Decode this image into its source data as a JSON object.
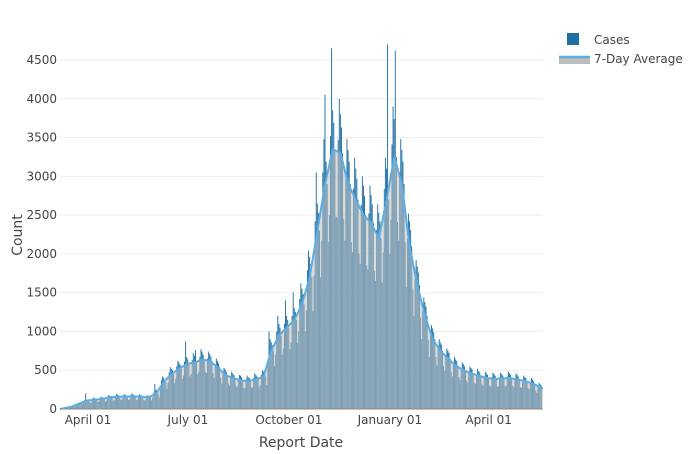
{
  "chart_data": {
    "type": "bar",
    "title": "",
    "xlabel": "Report Date",
    "ylabel": "Count",
    "ylim": [
      0,
      4500
    ],
    "y_ticks": [
      0,
      500,
      1000,
      1500,
      2000,
      2500,
      3000,
      3500,
      4000,
      4500
    ],
    "x_ticks": [
      {
        "label": "April 01",
        "date": "2020-04-01"
      },
      {
        "label": "July 01",
        "date": "2020-07-01"
      },
      {
        "label": "October 01",
        "date": "2020-10-01"
      },
      {
        "label": "January 01",
        "date": "2021-01-01"
      },
      {
        "label": "April 01",
        "date": "2021-04-01"
      }
    ],
    "x_start": "2020-03-07",
    "x_end": "2021-05-20",
    "grid": true,
    "legend_position": "top-right",
    "colors": {
      "cases": "#1f6fa3",
      "avg_line": "#5dade2",
      "avg_fill": "#bdbdbd"
    },
    "series": [
      {
        "name": "Cases",
        "kind": "bar",
        "frequency": "daily",
        "values": [
          2,
          5,
          8,
          10,
          12,
          15,
          18,
          20,
          25,
          30,
          35,
          35,
          40,
          30,
          50,
          60,
          75,
          80,
          85,
          90,
          60,
          80,
          115,
          200,
          120,
          110,
          105,
          80,
          90,
          125,
          145,
          140,
          130,
          120,
          90,
          95,
          140,
          160,
          150,
          140,
          130,
          95,
          110,
          160,
          180,
          170,
          165,
          150,
          110,
          120,
          170,
          190,
          185,
          175,
          160,
          120,
          120,
          170,
          195,
          180,
          175,
          160,
          115,
          125,
          175,
          200,
          190,
          180,
          165,
          120,
          120,
          170,
          190,
          180,
          175,
          160,
          115,
          110,
          160,
          180,
          170,
          165,
          150,
          110,
          150,
          210,
          320,
          250,
          230,
          200,
          150,
          260,
          370,
          420,
          400,
          380,
          350,
          260,
          340,
          470,
          540,
          520,
          500,
          450,
          330,
          390,
          550,
          620,
          600,
          570,
          520,
          390,
          430,
          610,
          870,
          670,
          640,
          580,
          420,
          450,
          630,
          720,
          690,
          760,
          600,
          450,
          480,
          670,
          770,
          740,
          700,
          640,
          480,
          460,
          650,
          740,
          710,
          680,
          620,
          460,
          400,
          570,
          650,
          620,
          590,
          540,
          400,
          330,
          460,
          530,
          510,
          480,
          440,
          330,
          300,
          420,
          480,
          460,
          440,
          400,
          300,
          280,
          390,
          440,
          430,
          410,
          370,
          270,
          270,
          380,
          430,
          410,
          400,
          360,
          270,
          280,
          400,
          460,
          440,
          420,
          380,
          280,
          310,
          440,
          500,
          480,
          460,
          420,
          310,
          560,
          1000,
          900,
          860,
          820,
          750,
          550,
          700,
          1000,
          1200,
          1100,
          1050,
          950,
          700,
          780,
          1100,
          1400,
          1200,
          1150,
          1050,
          770,
          860,
          1200,
          1500,
          1300,
          1250,
          1150,
          850,
          1000,
          1420,
          1620,
          1550,
          1480,
          1350,
          1000,
          1270,
          1790,
          2040,
          1960,
          1870,
          1700,
          1260,
          1720,
          2420,
          3050,
          2650,
          2530,
          2300,
          1700,
          2170,
          3050,
          3480,
          4050,
          3190,
          2900,
          2150,
          2500,
          3520,
          4650,
          3850,
          3690,
          3350,
          2480,
          2470,
          3470,
          4000,
          3800,
          3630,
          3300,
          2450,
          2170,
          3050,
          3480,
          3340,
          3190,
          2900,
          2150,
          2020,
          2840,
          3240,
          3100,
          2970,
          2700,
          2000,
          1870,
          2630,
          3000,
          2880,
          2750,
          2500,
          1850,
          1800,
          2520,
          2880,
          2760,
          2640,
          2400,
          1780,
          1650,
          2310,
          2640,
          2530,
          2420,
          2200,
          1630,
          2020,
          2840,
          3240,
          3100,
          4700,
          2700,
          2000,
          2440,
          3410,
          3900,
          3740,
          4620,
          3250,
          2410,
          2170,
          3050,
          3480,
          3340,
          3190,
          2900,
          2150,
          1570,
          2200,
          2520,
          2420,
          2310,
          2100,
          1550,
          1200,
          1680,
          1920,
          1840,
          1760,
          1600,
          1180,
          900,
          1260,
          1440,
          1380,
          1320,
          1200,
          890,
          670,
          950,
          1080,
          1040,
          990,
          900,
          670,
          560,
          790,
          900,
          860,
          830,
          750,
          550,
          490,
          680,
          780,
          750,
          720,
          650,
          480,
          420,
          590,
          670,
          640,
          620,
          560,
          410,
          370,
          530,
          600,
          580,
          550,
          500,
          370,
          340,
          480,
          550,
          530,
          510,
          460,
          340,
          320,
          450,
          520,
          490,
          470,
          430,
          320,
          300,
          420,
          480,
          460,
          440,
          400,
          300,
          290,
          410,
          470,
          450,
          430,
          390,
          290,
          290,
          410,
          470,
          450,
          430,
          390,
          290,
          300,
          420,
          480,
          460,
          440,
          400,
          300,
          280,
          400,
          460,
          440,
          420,
          380,
          280,
          270,
          380,
          430,
          410,
          400,
          360,
          270,
          250,
          350,
          400,
          380,
          360,
          330,
          240,
          210,
          290,
          340,
          320,
          300
        ]
      },
      {
        "name": "7-Day Average",
        "kind": "area-line",
        "frequency": "weekly",
        "values": [
          10,
          30,
          70,
          110,
          120,
          130,
          150,
          160,
          160,
          165,
          160,
          150,
          200,
          350,
          450,
          520,
          580,
          600,
          640,
          620,
          540,
          440,
          400,
          370,
          360,
          380,
          420,
          750,
          950,
          1050,
          1150,
          1350,
          1700,
          2300,
          2900,
          3350,
          3300,
          2900,
          2700,
          2500,
          2400,
          2200,
          2700,
          3250,
          2900,
          2100,
          1600,
          1200,
          900,
          750,
          650,
          560,
          500,
          460,
          430,
          400,
          390,
          390,
          400,
          380,
          360,
          330,
          280
        ]
      }
    ]
  }
}
